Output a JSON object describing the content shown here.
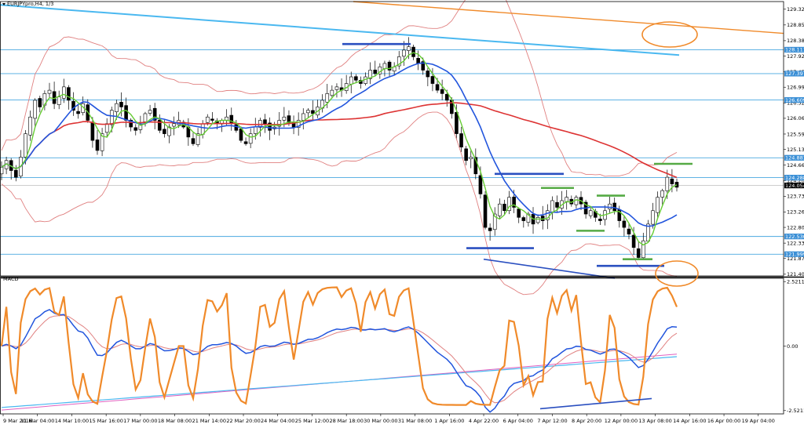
{
  "header": {
    "symbol_label": "EURJPYpro,H4, 1/3"
  },
  "macd": {
    "label": "MACD"
  },
  "colors": {
    "bull": "#ffffff",
    "bear": "#000000",
    "ma_fast": "#66cc33",
    "ma_slow": "#2255dd",
    "ma_long": "#dd3333",
    "band": "#e08080",
    "hline": "#4aa8e0",
    "tag": "#3a8fd6",
    "orange": "#f08a2a",
    "sky": "#4ab8f0",
    "navy": "#2a4fc0",
    "green": "#55aa44",
    "magenta": "#e060c0"
  },
  "chart_data": [
    {
      "type": "candlestick",
      "panel": "price",
      "y_range": [
        121.35,
        129.55
      ],
      "y_ticks": [
        "129.321",
        "128.851",
        "128.381",
        "127.921",
        "127.451",
        "126.991",
        "126.521",
        "126.061",
        "125.591",
        "125.131",
        "124.661",
        "124.201",
        "123.731",
        "123.261",
        "122.801",
        "122.331",
        "121.871",
        "121.401"
      ],
      "y_tick_values": [
        129.321,
        128.851,
        128.381,
        127.921,
        127.451,
        126.991,
        126.521,
        126.061,
        125.591,
        125.131,
        124.661,
        124.201,
        123.731,
        123.261,
        122.801,
        122.331,
        121.871,
        121.401
      ],
      "x_labels": [
        "9 Mar 2016",
        "11 Mar 04:00",
        "14 Mar 10:00",
        "15 Mar 16:00",
        "17 Mar 00:00",
        "18 Mar 08:00",
        "21 Mar 14:00",
        "22 Mar 20:00",
        "24 Mar 04:00",
        "25 Mar 12:00",
        "28 Mar 18:00",
        "30 Mar 00:00",
        "31 Mar 08:00",
        "1 Apr 16:00",
        "4 Apr 22:00",
        "6 Apr 04:00",
        "7 Apr 12:00",
        "8 Apr 20:00",
        "12 Apr 00:00",
        "13 Apr 08:00",
        "14 Apr 16:00",
        "16 Apr 00:00",
        "19 Apr 04:00"
      ],
      "horizontal_levels": [
        {
          "value": 128.111,
          "label": "128.111"
        },
        {
          "value": 127.397,
          "label": "127.397"
        },
        {
          "value": 126.609,
          "label": "126.609"
        },
        {
          "value": 124.881,
          "label": "124.881"
        },
        {
          "value": 124.288,
          "label": "124.288"
        },
        {
          "value": 122.53,
          "label": "122.530"
        },
        {
          "value": 121.999,
          "label": "121.999"
        }
      ],
      "current_price": {
        "value": 124.054,
        "label": "124.054"
      },
      "close": [
        124.6,
        124.8,
        124.5,
        124.3,
        124.9,
        125.6,
        126.1,
        126.6,
        126.4,
        126.8,
        126.9,
        126.5,
        126.7,
        127.0,
        126.6,
        126.3,
        126.2,
        126.5,
        126.0,
        125.4,
        125.1,
        125.6,
        125.9,
        126.3,
        126.5,
        126.4,
        126.0,
        125.8,
        125.7,
        125.9,
        126.2,
        126.3,
        126.0,
        125.7,
        125.6,
        125.8,
        125.9,
        126.0,
        125.8,
        125.5,
        125.3,
        125.6,
        125.9,
        126.1,
        126.0,
        125.9,
        126.0,
        126.1,
        125.9,
        125.7,
        125.4,
        125.3,
        125.6,
        125.8,
        126.0,
        125.9,
        125.7,
        125.8,
        126.0,
        126.1,
        125.9,
        125.8,
        126.0,
        126.2,
        126.3,
        126.2,
        126.4,
        126.6,
        126.8,
        126.9,
        127.0,
        126.9,
        127.1,
        127.3,
        127.2,
        127.1,
        127.3,
        127.5,
        127.4,
        127.6,
        127.7,
        127.5,
        127.6,
        127.9,
        128.1,
        128.2,
        127.9,
        127.7,
        127.5,
        127.3,
        127.1,
        126.9,
        126.8,
        126.6,
        126.2,
        125.6,
        125.2,
        124.8,
        124.9,
        124.4,
        123.8,
        122.8,
        122.7,
        123.2,
        123.5,
        123.3,
        123.7,
        123.4,
        123.1,
        123.0,
        123.2,
        122.9,
        123.1,
        123.0,
        123.3,
        123.6,
        123.4,
        123.6,
        123.7,
        123.5,
        123.7,
        123.5,
        123.2,
        123.3,
        123.1,
        123.0,
        123.3,
        123.5,
        123.3,
        123.0,
        122.8,
        122.6,
        122.2,
        121.9,
        122.4,
        122.9,
        123.3,
        123.7,
        123.9,
        124.3,
        124.1,
        124.0
      ]
    },
    {
      "type": "line",
      "panel": "macd",
      "label": "MACD",
      "y_range": [
        -2.65,
        2.65
      ],
      "y_ticks": [
        "2.5211",
        "0.00",
        "-2.5211"
      ],
      "y_tick_values": [
        2.5211,
        0.0,
        -2.5211
      ]
    }
  ]
}
